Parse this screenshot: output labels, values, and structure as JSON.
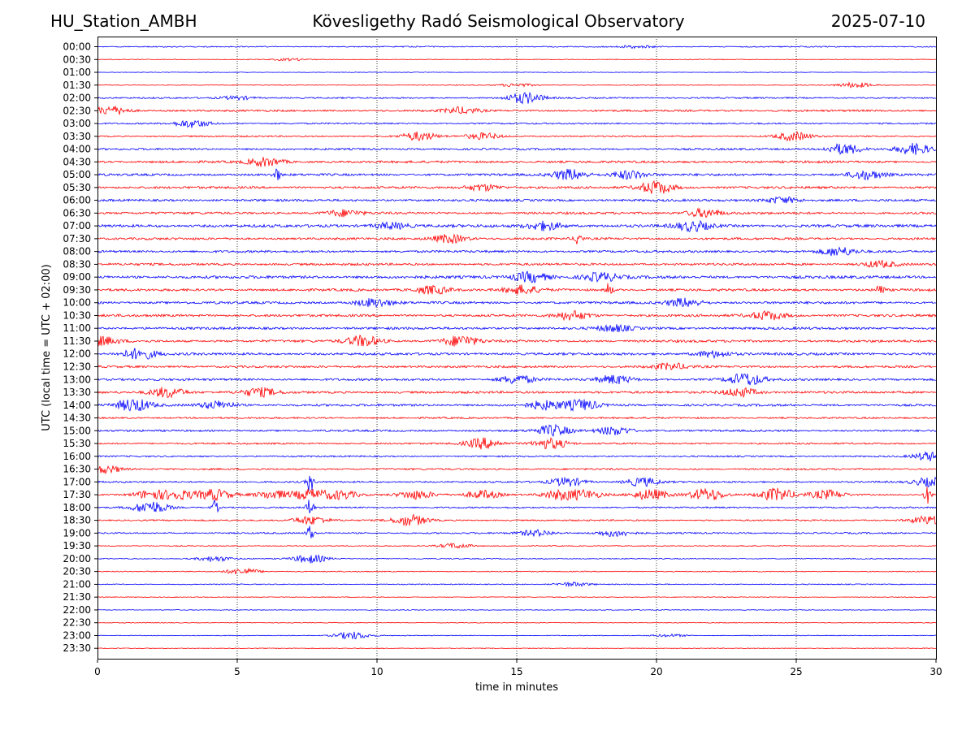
{
  "header": {
    "station": "HU_Station_AMBH",
    "observatory": "Kövesligethy Radó Seismological Observatory",
    "date": "2025-07-10"
  },
  "chart_data": {
    "type": "line",
    "title": "Kövesligethy Radó Seismological Observatory",
    "xlabel": "time in minutes",
    "ylabel": "UTC (local time = UTC + 02:00)",
    "xlim": [
      0,
      30
    ],
    "xticks": [
      "0",
      "5",
      "10",
      "15",
      "20",
      "25",
      "30"
    ],
    "grid": "vertical dotted at 5-minute intervals",
    "row_labels": [
      "00:00",
      "00:30",
      "01:00",
      "01:30",
      "02:00",
      "02:30",
      "03:00",
      "03:30",
      "04:00",
      "04:30",
      "05:00",
      "05:30",
      "06:00",
      "06:30",
      "07:00",
      "07:30",
      "08:00",
      "08:30",
      "09:00",
      "09:30",
      "10:00",
      "10:30",
      "11:00",
      "11:30",
      "12:00",
      "12:30",
      "13:00",
      "13:30",
      "14:00",
      "14:30",
      "15:00",
      "15:30",
      "16:00",
      "16:30",
      "17:00",
      "17:30",
      "18:00",
      "18:30",
      "19:00",
      "19:30",
      "20:00",
      "20:30",
      "21:00",
      "21:30",
      "22:00",
      "22:30",
      "23:00",
      "23:30"
    ],
    "trace_colors": [
      "#0000ff",
      "#ff0000"
    ],
    "base_amplitude": [
      0.6,
      0.4,
      0.3,
      0.4,
      0.8,
      1.0,
      0.8,
      0.8,
      1.0,
      1.2,
      1.2,
      1.2,
      1.2,
      1.2,
      1.5,
      1.2,
      1.2,
      1.2,
      1.5,
      1.3,
      1.3,
      1.3,
      1.3,
      1.3,
      1.3,
      1.2,
      1.2,
      1.2,
      1.2,
      0.9,
      1.0,
      0.9,
      0.8,
      0.9,
      0.9,
      0.9,
      0.8,
      0.8,
      0.8,
      0.5,
      0.5,
      0.5,
      0.5,
      0.4,
      0.4,
      0.4,
      0.4,
      0.4
    ],
    "events": [
      {
        "row": "00:00",
        "minute": 19.3,
        "strength": 0.6
      },
      {
        "row": "00:30",
        "minute": 6.9,
        "strength": 0.5
      },
      {
        "row": "01:30",
        "minute": 15.0,
        "strength": 0.8
      },
      {
        "row": "01:30",
        "minute": 27.1,
        "strength": 1.2
      },
      {
        "row": "02:00",
        "minute": 15.3,
        "strength": 2.5
      },
      {
        "row": "02:00",
        "minute": 5.0,
        "strength": 0.8
      },
      {
        "row": "02:30",
        "minute": 0.5,
        "strength": 2.0
      },
      {
        "row": "02:30",
        "minute": 13.0,
        "strength": 1.5
      },
      {
        "row": "03:00",
        "minute": 3.4,
        "strength": 1.8
      },
      {
        "row": "03:30",
        "minute": 11.5,
        "strength": 2.0
      },
      {
        "row": "03:30",
        "minute": 13.8,
        "strength": 1.5
      },
      {
        "row": "03:30",
        "minute": 24.9,
        "strength": 2.0
      },
      {
        "row": "04:00",
        "minute": 26.7,
        "strength": 2.5
      },
      {
        "row": "04:00",
        "minute": 29.2,
        "strength": 2.5
      },
      {
        "row": "04:30",
        "minute": 6.0,
        "strength": 2.0
      },
      {
        "row": "05:00",
        "minute": 6.4,
        "strength": 3.5
      },
      {
        "row": "05:00",
        "minute": 16.9,
        "strength": 2.5
      },
      {
        "row": "05:00",
        "minute": 19.0,
        "strength": 2.0
      },
      {
        "row": "05:00",
        "minute": 27.5,
        "strength": 2.0
      },
      {
        "row": "05:30",
        "minute": 20.0,
        "strength": 3.0
      },
      {
        "row": "05:30",
        "minute": 13.8,
        "strength": 1.5
      },
      {
        "row": "06:00",
        "minute": 24.5,
        "strength": 1.5
      },
      {
        "row": "06:30",
        "minute": 21.7,
        "strength": 2.0
      },
      {
        "row": "06:30",
        "minute": 8.8,
        "strength": 1.5
      },
      {
        "row": "07:00",
        "minute": 16.0,
        "strength": 2.0
      },
      {
        "row": "07:00",
        "minute": 21.3,
        "strength": 2.2
      },
      {
        "row": "07:00",
        "minute": 10.5,
        "strength": 1.5
      },
      {
        "row": "07:30",
        "minute": 17.2,
        "strength": 3.5
      },
      {
        "row": "07:30",
        "minute": 12.6,
        "strength": 2.0
      },
      {
        "row": "08:00",
        "minute": 26.5,
        "strength": 2.0
      },
      {
        "row": "08:30",
        "minute": 28.0,
        "strength": 1.5
      },
      {
        "row": "09:00",
        "minute": 15.5,
        "strength": 2.5
      },
      {
        "row": "09:00",
        "minute": 18.0,
        "strength": 2.0
      },
      {
        "row": "09:30",
        "minute": 18.3,
        "strength": 3.5
      },
      {
        "row": "09:30",
        "minute": 28.0,
        "strength": 3.5
      },
      {
        "row": "09:30",
        "minute": 15.2,
        "strength": 2.0
      },
      {
        "row": "09:30",
        "minute": 12.0,
        "strength": 2.0
      },
      {
        "row": "10:00",
        "minute": 9.9,
        "strength": 2.0
      },
      {
        "row": "10:00",
        "minute": 21.0,
        "strength": 2.0
      },
      {
        "row": "10:30",
        "minute": 24.0,
        "strength": 2.0
      },
      {
        "row": "10:30",
        "minute": 17.0,
        "strength": 2.0
      },
      {
        "row": "11:00",
        "minute": 18.5,
        "strength": 1.5
      },
      {
        "row": "11:30",
        "minute": 9.5,
        "strength": 2.5
      },
      {
        "row": "11:30",
        "minute": 13.0,
        "strength": 2.5
      },
      {
        "row": "11:30",
        "minute": 0.1,
        "strength": 2.0
      },
      {
        "row": "12:00",
        "minute": 1.5,
        "strength": 2.5
      },
      {
        "row": "12:00",
        "minute": 22.0,
        "strength": 1.5
      },
      {
        "row": "12:30",
        "minute": 20.5,
        "strength": 1.5
      },
      {
        "row": "13:00",
        "minute": 15.0,
        "strength": 2.0
      },
      {
        "row": "13:00",
        "minute": 23.2,
        "strength": 3.0
      },
      {
        "row": "13:00",
        "minute": 18.5,
        "strength": 2.0
      },
      {
        "row": "13:30",
        "minute": 2.5,
        "strength": 2.5
      },
      {
        "row": "13:30",
        "minute": 5.8,
        "strength": 2.0
      },
      {
        "row": "13:30",
        "minute": 23.0,
        "strength": 2.0
      },
      {
        "row": "14:00",
        "minute": 1.3,
        "strength": 3.0
      },
      {
        "row": "14:00",
        "minute": 4.3,
        "strength": 1.8
      },
      {
        "row": "14:00",
        "minute": 17.3,
        "strength": 2.5
      },
      {
        "row": "14:00",
        "minute": 16.0,
        "strength": 2.0
      },
      {
        "row": "15:00",
        "minute": 16.3,
        "strength": 2.5
      },
      {
        "row": "15:00",
        "minute": 18.5,
        "strength": 2.0
      },
      {
        "row": "15:30",
        "minute": 13.8,
        "strength": 2.5
      },
      {
        "row": "15:30",
        "minute": 16.2,
        "strength": 2.5
      },
      {
        "row": "16:00",
        "minute": 29.8,
        "strength": 2.0
      },
      {
        "row": "16:30",
        "minute": 0.3,
        "strength": 1.8
      },
      {
        "row": "17:00",
        "minute": 7.6,
        "strength": 5.0
      },
      {
        "row": "17:00",
        "minute": 16.8,
        "strength": 2.0
      },
      {
        "row": "17:00",
        "minute": 19.5,
        "strength": 2.0
      },
      {
        "row": "17:00",
        "minute": 29.8,
        "strength": 2.0
      },
      {
        "row": "17:30",
        "minute": 1.9,
        "strength": 2.0
      },
      {
        "row": "17:30",
        "minute": 2.9,
        "strength": 2.0
      },
      {
        "row": "17:30",
        "minute": 4.2,
        "strength": 2.5
      },
      {
        "row": "17:30",
        "minute": 6.3,
        "strength": 2.0
      },
      {
        "row": "17:30",
        "minute": 7.6,
        "strength": 2.5
      },
      {
        "row": "17:30",
        "minute": 8.7,
        "strength": 2.0
      },
      {
        "row": "17:30",
        "minute": 11.4,
        "strength": 2.0
      },
      {
        "row": "17:30",
        "minute": 13.8,
        "strength": 2.0
      },
      {
        "row": "17:30",
        "minute": 16.5,
        "strength": 2.0
      },
      {
        "row": "17:30",
        "minute": 17.4,
        "strength": 2.0
      },
      {
        "row": "17:30",
        "minute": 19.8,
        "strength": 2.5
      },
      {
        "row": "17:30",
        "minute": 21.8,
        "strength": 3.0
      },
      {
        "row": "17:30",
        "minute": 24.3,
        "strength": 3.0
      },
      {
        "row": "17:30",
        "minute": 26.1,
        "strength": 2.0
      },
      {
        "row": "17:30",
        "minute": 29.7,
        "strength": 4.0
      },
      {
        "row": "18:00",
        "minute": 1.9,
        "strength": 3.0
      },
      {
        "row": "18:00",
        "minute": 4.2,
        "strength": 3.5
      },
      {
        "row": "18:00",
        "minute": 7.6,
        "strength": 5.0
      },
      {
        "row": "18:30",
        "minute": 11.2,
        "strength": 2.5
      },
      {
        "row": "18:30",
        "minute": 7.6,
        "strength": 2.0
      },
      {
        "row": "18:30",
        "minute": 29.7,
        "strength": 2.0
      },
      {
        "row": "19:00",
        "minute": 7.6,
        "strength": 4.0
      },
      {
        "row": "19:00",
        "minute": 15.7,
        "strength": 1.5
      },
      {
        "row": "19:00",
        "minute": 18.5,
        "strength": 1.5
      },
      {
        "row": "19:30",
        "minute": 12.8,
        "strength": 1.2
      },
      {
        "row": "20:00",
        "minute": 4.2,
        "strength": 1.2
      },
      {
        "row": "20:00",
        "minute": 7.6,
        "strength": 2.0
      },
      {
        "row": "20:30",
        "minute": 5.2,
        "strength": 1.5
      },
      {
        "row": "21:00",
        "minute": 17.0,
        "strength": 1.0
      },
      {
        "row": "23:00",
        "minute": 9.1,
        "strength": 1.8
      },
      {
        "row": "23:00",
        "minute": 20.5,
        "strength": 0.6
      }
    ]
  }
}
